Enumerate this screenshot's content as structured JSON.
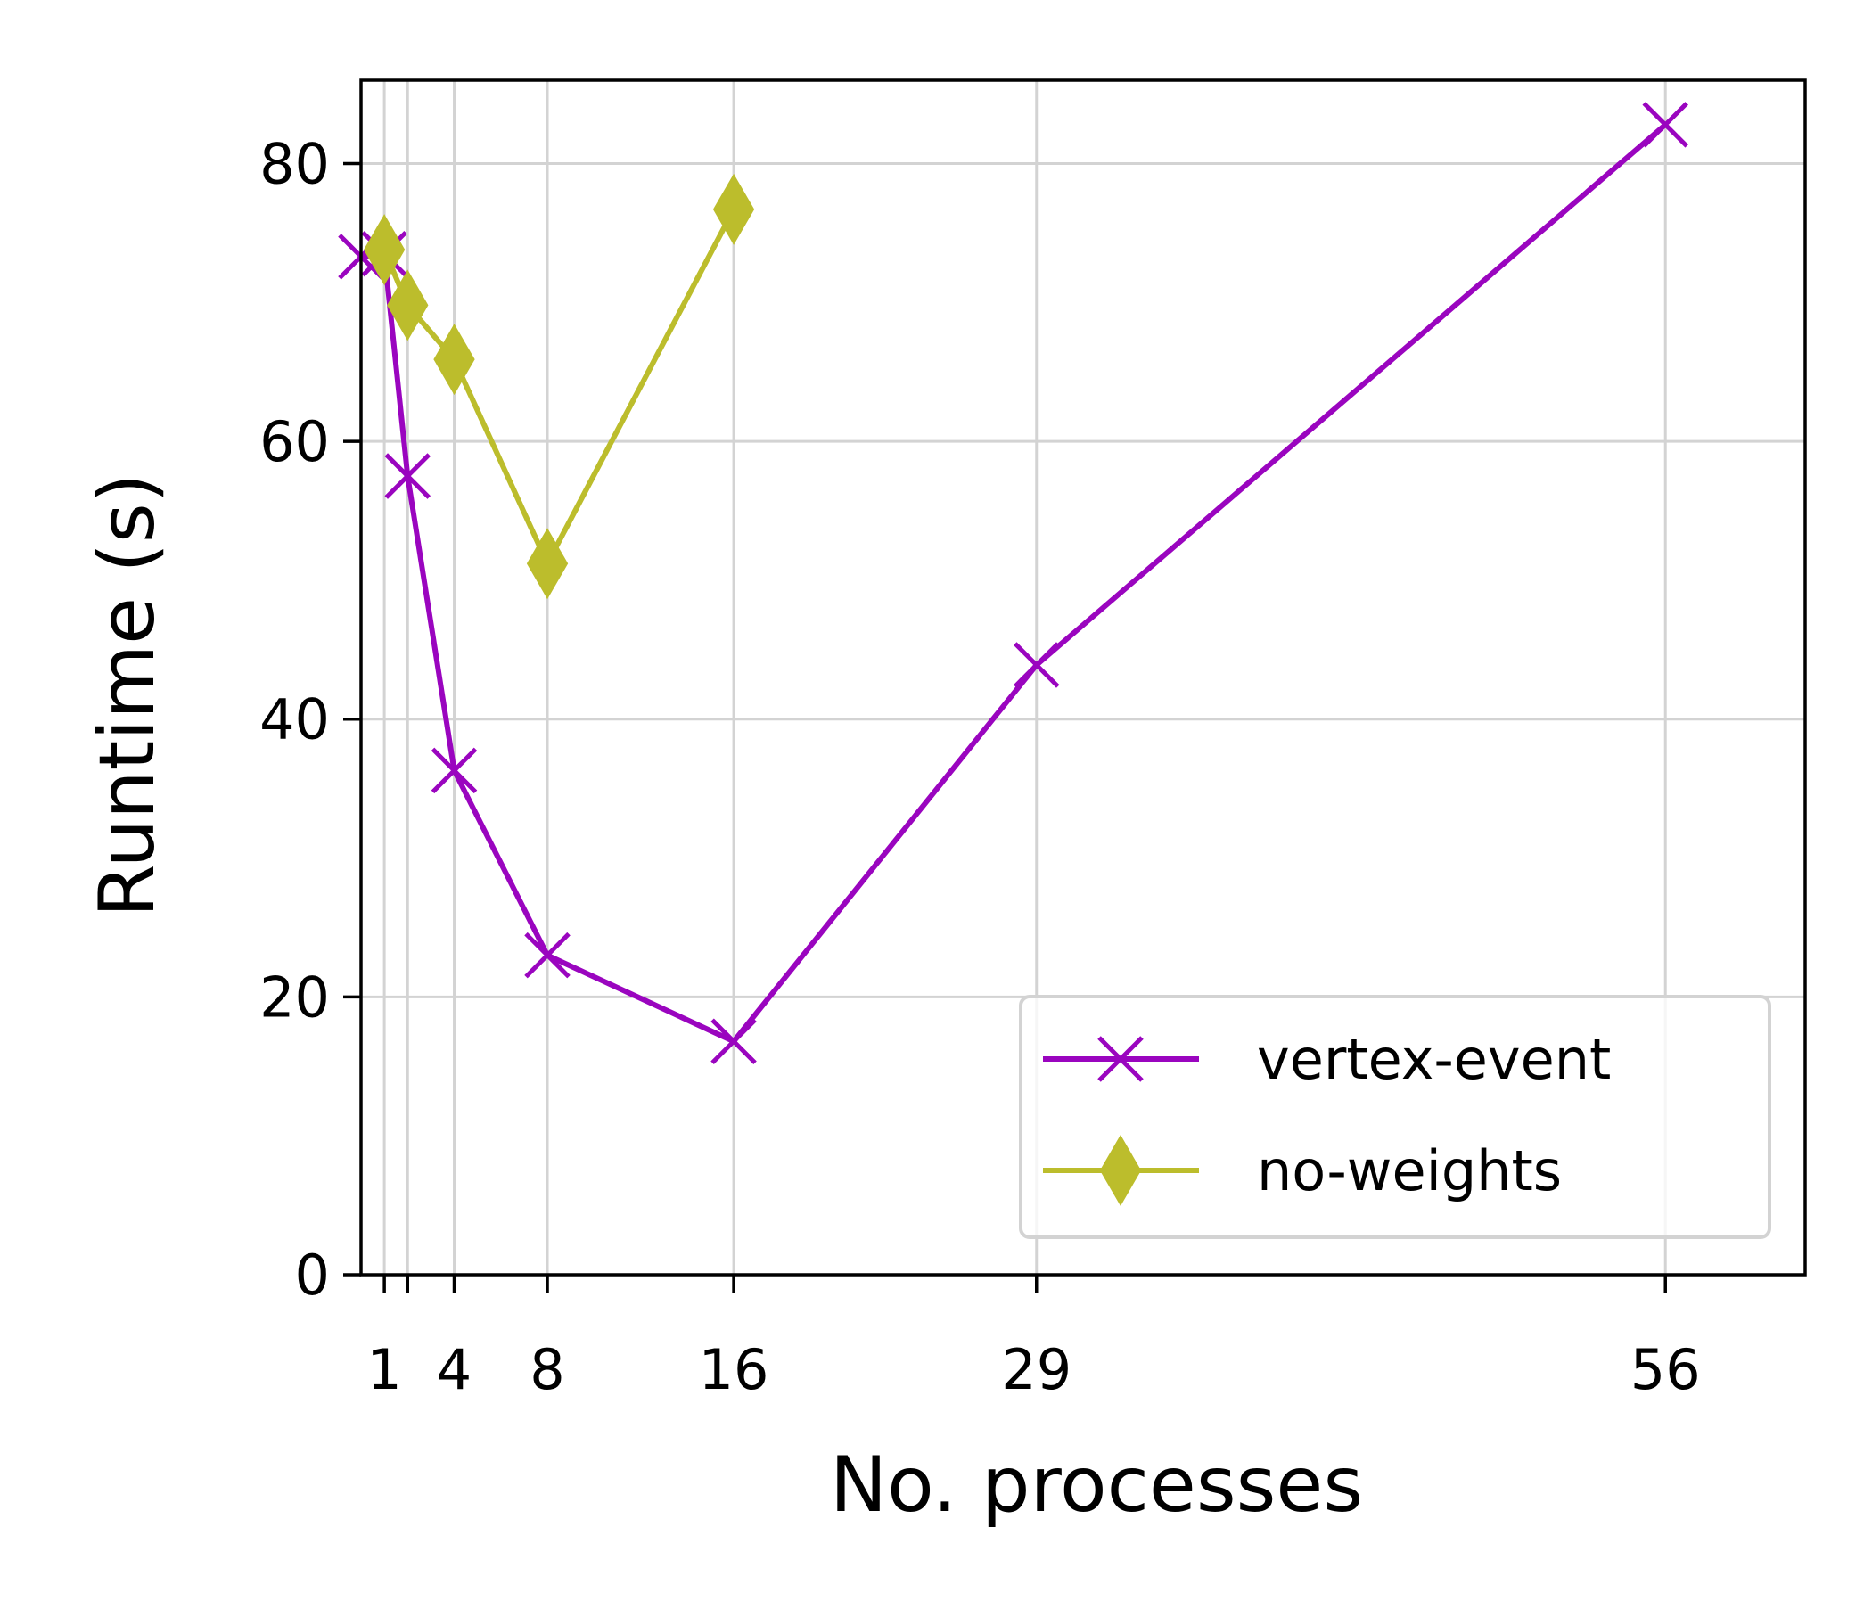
{
  "chart_data": {
    "type": "line",
    "title": "",
    "xlabel": "No. processes",
    "ylabel": "Runtime (s)",
    "xlim": [
      0,
      62
    ],
    "ylim": [
      0,
      86
    ],
    "xticks": [
      1,
      2,
      4,
      8,
      16,
      29,
      56
    ],
    "xtick_labels": [
      "1",
      "",
      "4",
      "8",
      "16",
      "29",
      "56"
    ],
    "yticks": [
      0,
      20,
      40,
      60,
      80
    ],
    "ytick_labels": [
      "0",
      "20",
      "40",
      "60",
      "80"
    ],
    "grid": true,
    "legend_position": "lower-right",
    "series": [
      {
        "name": "vertex-event",
        "color": "#9a05bf",
        "marker": "x",
        "x": [
          0,
          1,
          2,
          4,
          8,
          16,
          29,
          56
        ],
        "y": [
          73.3,
          73.5,
          57.5,
          36.3,
          23.0,
          16.8,
          43.9,
          82.8
        ]
      },
      {
        "name": "no-weights",
        "color": "#bcbd2c",
        "marker": "diamond",
        "x": [
          1,
          2,
          4,
          8,
          16
        ],
        "y": [
          73.8,
          69.8,
          65.9,
          51.2,
          76.7
        ]
      }
    ]
  }
}
